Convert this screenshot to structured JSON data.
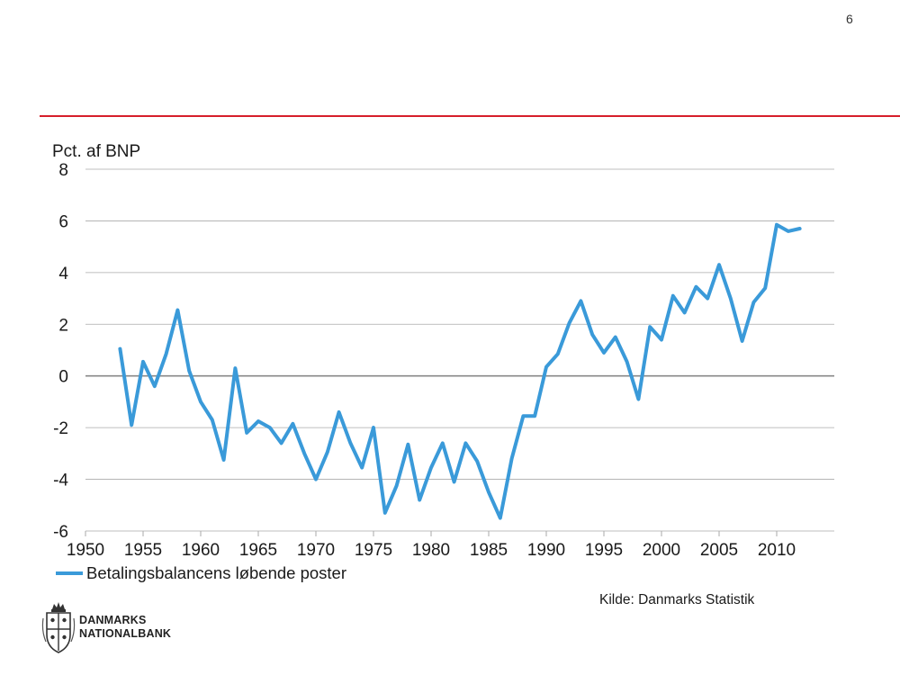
{
  "page_number": "6",
  "colors": {
    "accent_red": "#d61f2b",
    "series_blue": "#3a9ad9",
    "grid": "#aaaaaa",
    "zero_line": "#888888"
  },
  "chart_data": {
    "type": "line",
    "ylabel": "Pct. af BNP",
    "ylim": [
      -6,
      8
    ],
    "xlim": [
      1950,
      2015
    ],
    "y_ticks": [
      "8",
      "6",
      "4",
      "2",
      "0",
      "-2",
      "-4",
      "-6"
    ],
    "x_ticks": [
      "1950",
      "1955",
      "1960",
      "1965",
      "1970",
      "1975",
      "1980",
      "1985",
      "1990",
      "1995",
      "2000",
      "2005",
      "2010"
    ],
    "grid": true,
    "legend_position": "bottom-left",
    "series": [
      {
        "name": "Betalingsbalancens løbende poster",
        "x": [
          1953,
          1954,
          1955,
          1956,
          1957,
          1958,
          1959,
          1960,
          1961,
          1962,
          1963,
          1964,
          1965,
          1966,
          1967,
          1968,
          1969,
          1970,
          1971,
          1972,
          1973,
          1974,
          1975,
          1976,
          1977,
          1978,
          1979,
          1980,
          1981,
          1982,
          1983,
          1984,
          1985,
          1986,
          1987,
          1988,
          1989,
          1990,
          1991,
          1992,
          1993,
          1994,
          1995,
          1996,
          1997,
          1998,
          1999,
          2000,
          2001,
          2002,
          2003,
          2004,
          2005,
          2006,
          2007,
          2008,
          2009,
          2010,
          2011,
          2012
        ],
        "values": [
          1.05,
          -1.9,
          0.55,
          -0.4,
          0.85,
          2.55,
          0.2,
          -1.0,
          -1.7,
          -3.25,
          0.3,
          -2.2,
          -1.75,
          -2.0,
          -2.6,
          -1.85,
          -3.0,
          -4.0,
          -2.95,
          -1.4,
          -2.6,
          -3.55,
          -2.0,
          -5.3,
          -4.25,
          -2.65,
          -4.8,
          -3.55,
          -2.6,
          -4.1,
          -2.6,
          -3.3,
          -4.5,
          -5.5,
          -3.2,
          -1.55,
          -1.55,
          0.35,
          0.85,
          2.05,
          2.9,
          1.6,
          0.9,
          1.5,
          0.55,
          -0.9,
          1.9,
          1.4,
          3.1,
          2.45,
          3.45,
          3.0,
          4.3,
          3.0,
          1.35,
          2.85,
          3.4,
          5.85,
          5.6,
          5.7
        ]
      }
    ],
    "source": "Kilde: Danmarks Statistik"
  },
  "logo": {
    "line1": "DANMARKS",
    "line2": "NATIONALBANK"
  }
}
